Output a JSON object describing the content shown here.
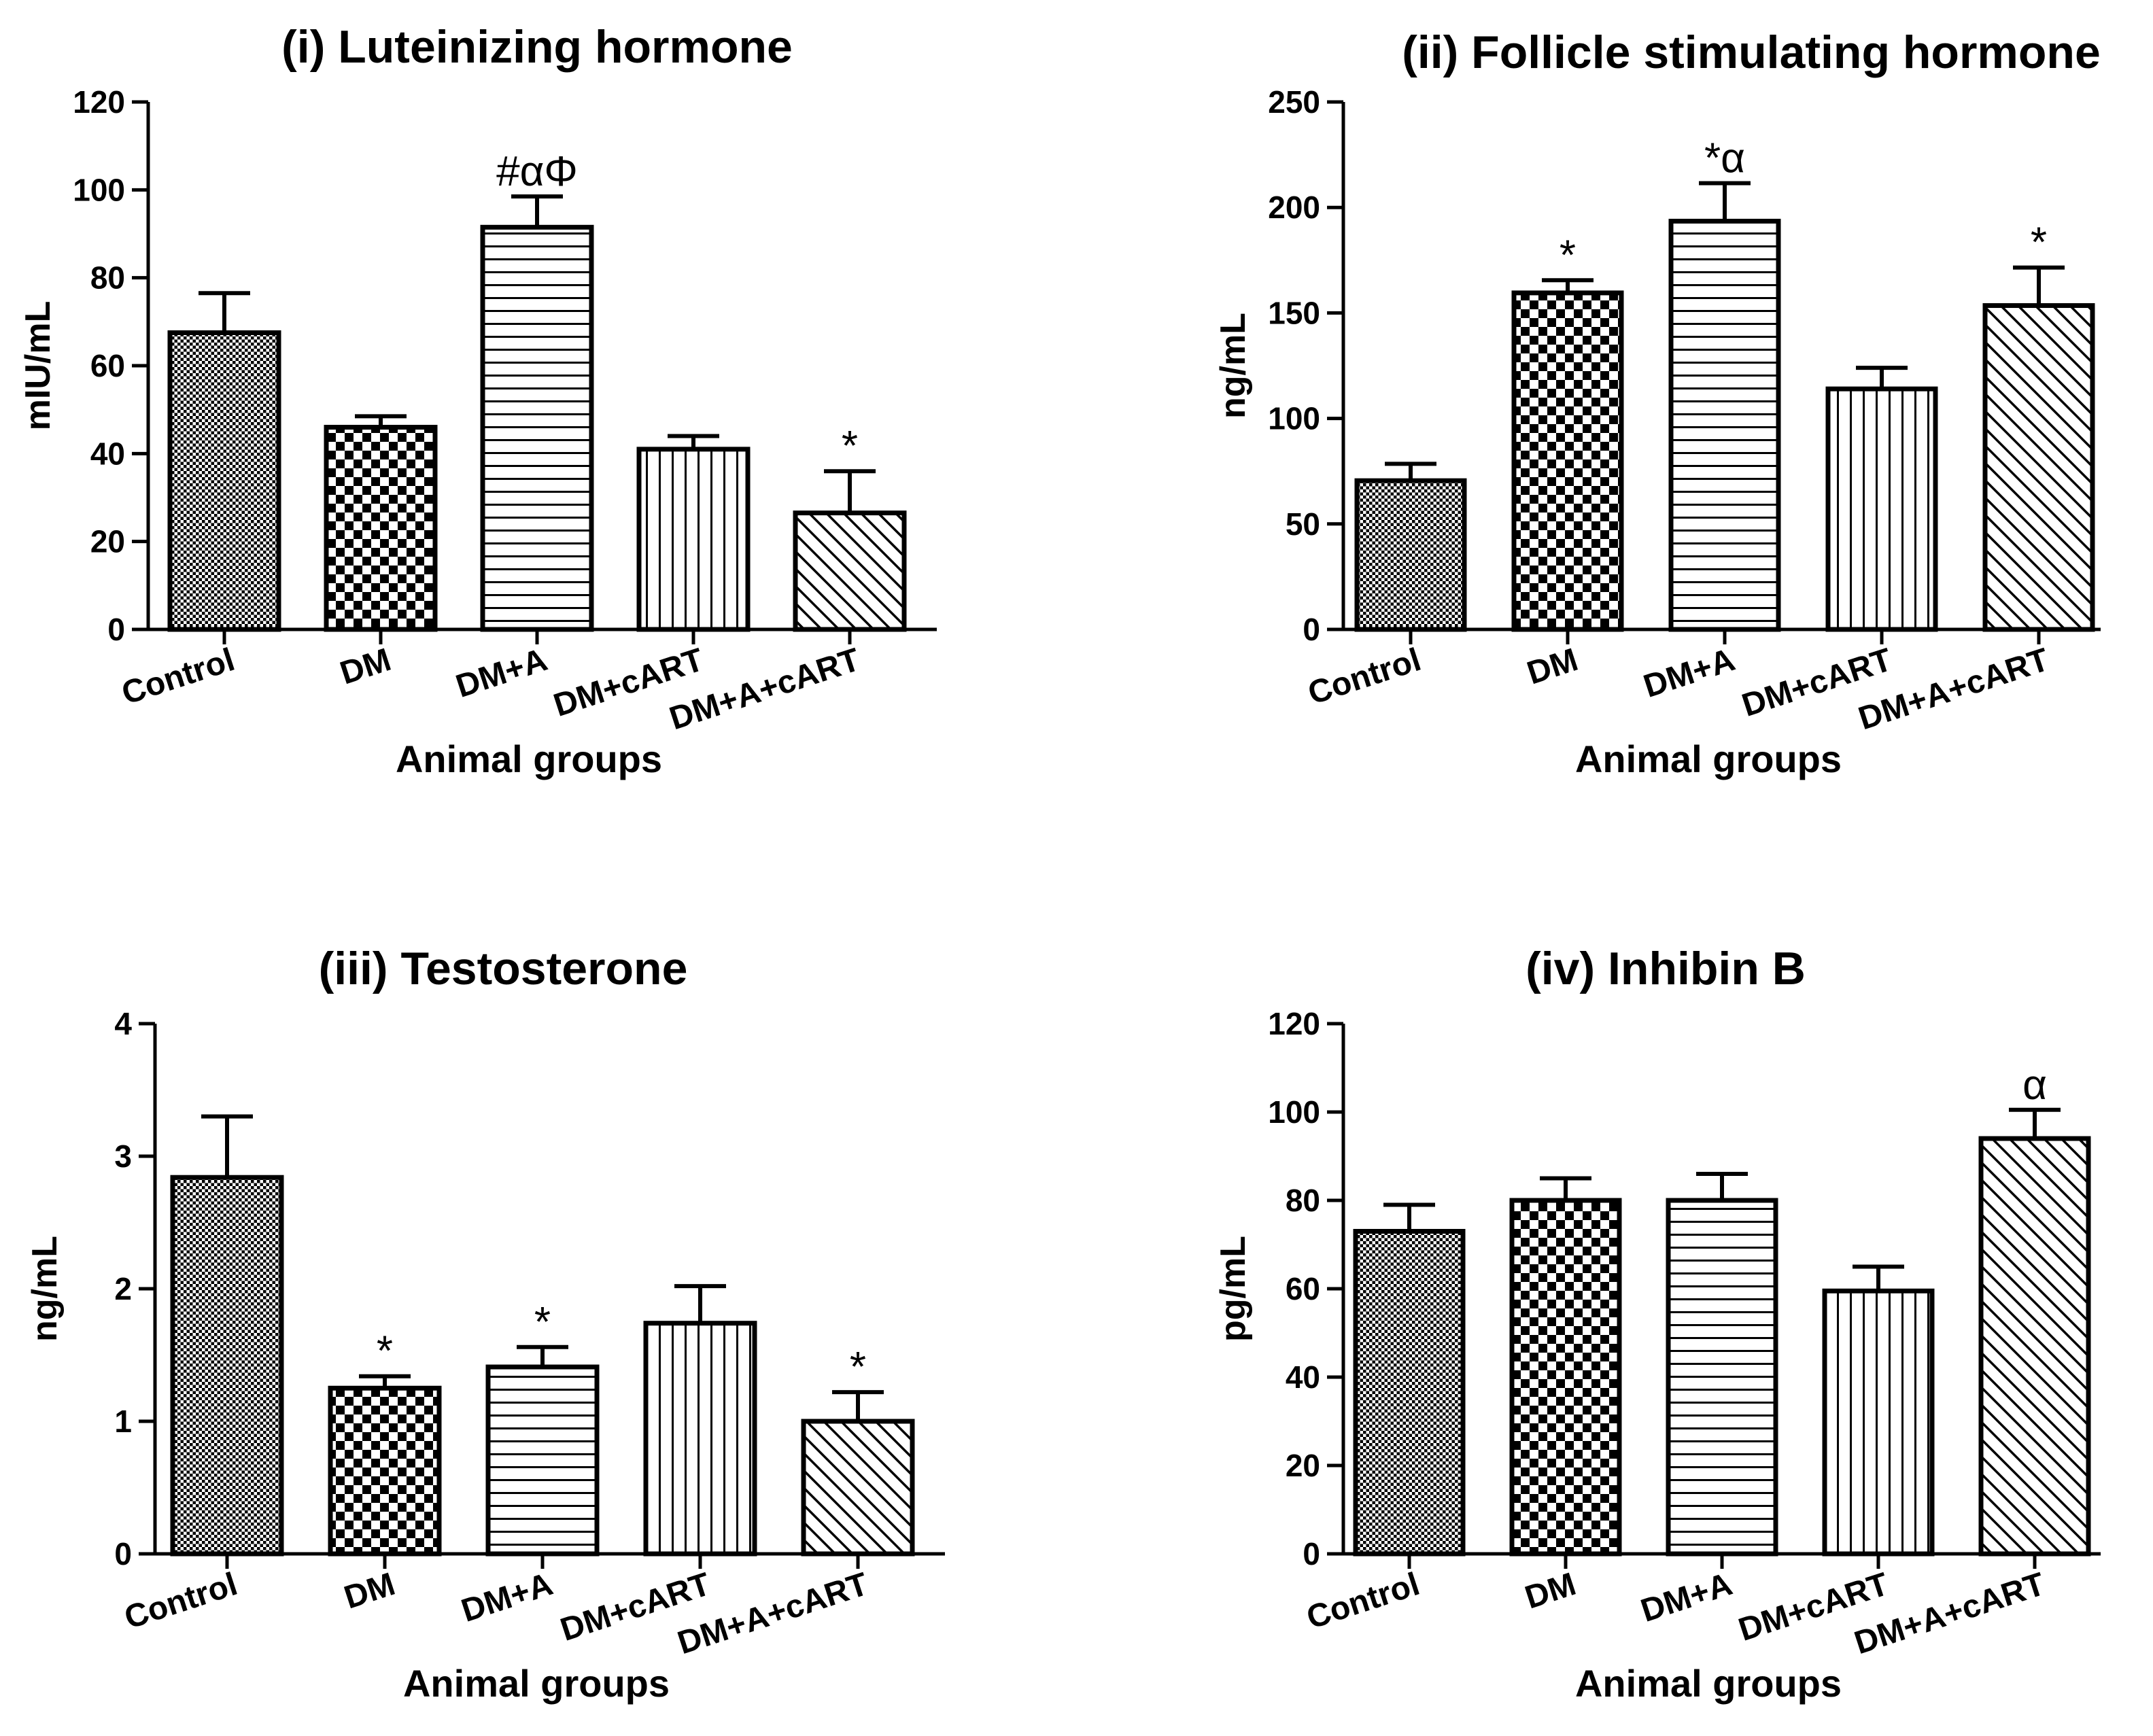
{
  "colors": {
    "ink": "#000000",
    "background": "#ffffff"
  },
  "chart_data": [
    {
      "type": "bar",
      "title": "(i) Luteinizing hormone",
      "ylabel": "mIU/mL",
      "xlabel": "Animal groups",
      "categories": [
        "Control",
        "DM",
        "DM+A",
        "DM+cART",
        "DM+A+cART"
      ],
      "values": [
        67.5,
        46,
        91.5,
        41,
        26.5
      ],
      "errors": [
        9,
        2.5,
        7,
        3,
        9.5
      ],
      "annotations": [
        "",
        "",
        "#αΦ",
        "",
        "*"
      ],
      "patterns": [
        "cross",
        "check",
        "hlines",
        "vlines",
        "diag"
      ],
      "ylim": [
        0,
        120
      ],
      "yticks": [
        0,
        20,
        40,
        60,
        80,
        100,
        120
      ],
      "grid": false
    },
    {
      "type": "bar",
      "title": "(ii) Follicle stimulating hormone",
      "ylabel": "ng/mL",
      "xlabel": "Animal groups",
      "categories": [
        "Control",
        "DM",
        "DM+A",
        "DM+cART",
        "DM+A+cART"
      ],
      "values": [
        70.5,
        159.5,
        193.5,
        114,
        153.5
      ],
      "errors": [
        8,
        6,
        18,
        10,
        18
      ],
      "annotations": [
        "",
        "*",
        "*α",
        "",
        "*"
      ],
      "patterns": [
        "cross",
        "check",
        "hlines",
        "vlines",
        "diag"
      ],
      "ylim": [
        0,
        250
      ],
      "yticks": [
        0,
        50,
        100,
        150,
        200,
        250
      ],
      "grid": false
    },
    {
      "type": "bar",
      "title": "(iii) Testosterone",
      "ylabel": "ng/mL",
      "xlabel": "Animal groups",
      "categories": [
        "Control",
        "DM",
        "DM+A",
        "DM+cART",
        "DM+A+cART"
      ],
      "values": [
        2.84,
        1.25,
        1.41,
        1.74,
        1.0
      ],
      "errors": [
        0.46,
        0.09,
        0.15,
        0.28,
        0.22
      ],
      "annotations": [
        "",
        "*",
        "*",
        "",
        "*"
      ],
      "patterns": [
        "cross",
        "check",
        "hlines",
        "vlines",
        "diag"
      ],
      "ylim": [
        0,
        4
      ],
      "yticks": [
        0,
        1,
        2,
        3,
        4
      ],
      "grid": false
    },
    {
      "type": "bar",
      "title": "(iv) Inhibin B",
      "ylabel": "pg/mL",
      "xlabel": "Animal groups",
      "categories": [
        "Control",
        "DM",
        "DM+A",
        "DM+cART",
        "DM+A+cART"
      ],
      "values": [
        73,
        80,
        80,
        59.5,
        94
      ],
      "errors": [
        6,
        5,
        6,
        5.5,
        6.5
      ],
      "annotations": [
        "",
        "",
        "",
        "",
        "α"
      ],
      "patterns": [
        "cross",
        "check",
        "hlines",
        "vlines",
        "diag"
      ],
      "ylim": [
        0,
        120
      ],
      "yticks": [
        0,
        20,
        40,
        60,
        80,
        100,
        120
      ],
      "grid": false
    }
  ]
}
